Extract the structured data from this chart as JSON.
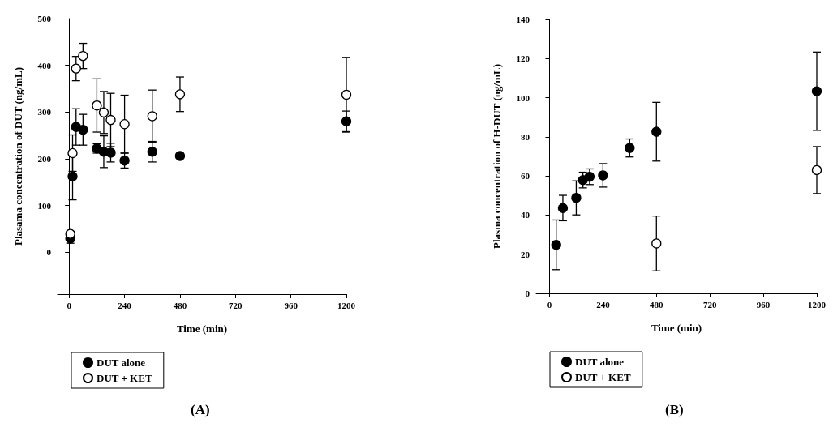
{
  "chart_data": [
    {
      "type": "scatter",
      "xlabel": "Time (min)",
      "ylabel": "Plasama concentration of DUT (ng/mL)",
      "annotations": [
        "(A)"
      ],
      "xlim": [
        -50,
        1200
      ],
      "xticks": [
        0,
        240,
        480,
        720,
        960,
        1200
      ],
      "ylim": [
        -90,
        500
      ],
      "yticks": [
        0,
        100,
        200,
        300,
        400,
        500
      ],
      "marker": "circle",
      "legend": "bottom left",
      "grid": false,
      "series": [
        {
          "name": "DUT alone",
          "color": "#000000",
          "x": [
            5,
            15,
            30,
            60,
            120,
            150,
            180,
            240,
            360,
            480,
            1200
          ],
          "values": [
            29,
            162,
            268,
            262,
            222,
            215,
            213,
            196,
            215,
            206,
            280
          ],
          "errors": [
            10,
            50,
            39,
            33,
            10,
            34,
            20,
            16,
            22,
            5,
            22
          ]
        },
        {
          "name": "DUT + KET",
          "color": "#ffffff",
          "x": [
            5,
            15,
            30,
            60,
            120,
            150,
            180,
            240,
            360,
            480,
            1200
          ],
          "values": [
            39,
            212,
            393,
            420,
            314,
            299,
            283,
            274,
            291,
            338,
            337
          ],
          "errors": [
            5,
            39,
            26,
            27,
            57,
            45,
            57,
            62,
            56,
            37,
            80
          ]
        }
      ]
    },
    {
      "type": "scatter",
      "xlabel": "Time (min)",
      "ylabel": "Plasma concentration of H-DUT (ng/mL)",
      "annotations": [
        "(B)"
      ],
      "xlim": [
        -60,
        1200
      ],
      "xticks": [
        0,
        240,
        480,
        720,
        960,
        1200
      ],
      "ylim": [
        0,
        140
      ],
      "yticks": [
        0,
        20,
        40,
        60,
        80,
        100,
        120,
        140
      ],
      "marker": "circle",
      "legend": "bottom left",
      "grid": false,
      "series": [
        {
          "name": "DUT alone",
          "color": "#000000",
          "x": [
            30,
            60,
            120,
            150,
            180,
            240,
            360,
            480,
            1200
          ],
          "values": [
            24.8,
            43.6,
            48.8,
            57.9,
            59.6,
            60.3,
            74.3,
            82.6,
            103.3
          ],
          "errors": [
            12.7,
            6.5,
            8.7,
            4,
            4,
            6,
            4.6,
            15,
            20
          ]
        },
        {
          "name": "DUT + KET",
          "color": "#ffffff",
          "x": [
            480,
            1200
          ],
          "values": [
            25.5,
            63
          ],
          "errors": [
            14,
            12
          ]
        }
      ]
    }
  ]
}
